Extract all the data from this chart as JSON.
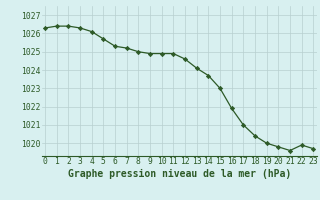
{
  "hours": [
    0,
    1,
    2,
    3,
    4,
    5,
    6,
    7,
    8,
    9,
    10,
    11,
    12,
    13,
    14,
    15,
    16,
    17,
    18,
    19,
    20,
    21,
    22,
    23
  ],
  "pressure": [
    1026.3,
    1026.4,
    1026.4,
    1026.3,
    1026.1,
    1025.7,
    1025.3,
    1025.2,
    1025.0,
    1024.9,
    1024.9,
    1024.9,
    1024.6,
    1024.1,
    1023.7,
    1023.0,
    1021.9,
    1021.0,
    1020.4,
    1020.0,
    1019.8,
    1019.6,
    1019.9,
    1019.7
  ],
  "line_color": "#2d5a27",
  "marker": "D",
  "marker_size": 2.2,
  "bg_color": "#d8f0f0",
  "grid_color": "#b8d0d0",
  "ylabel_ticks": [
    1020,
    1021,
    1022,
    1023,
    1024,
    1025,
    1026,
    1027
  ],
  "ylim": [
    1019.3,
    1027.5
  ],
  "xlim": [
    -0.3,
    23.3
  ],
  "xlabel": "Graphe pression niveau de la mer (hPa)",
  "xlabel_fontsize": 7.0,
  "tick_color": "#2d5a27",
  "tick_fontsize": 5.8,
  "linewidth": 0.9
}
